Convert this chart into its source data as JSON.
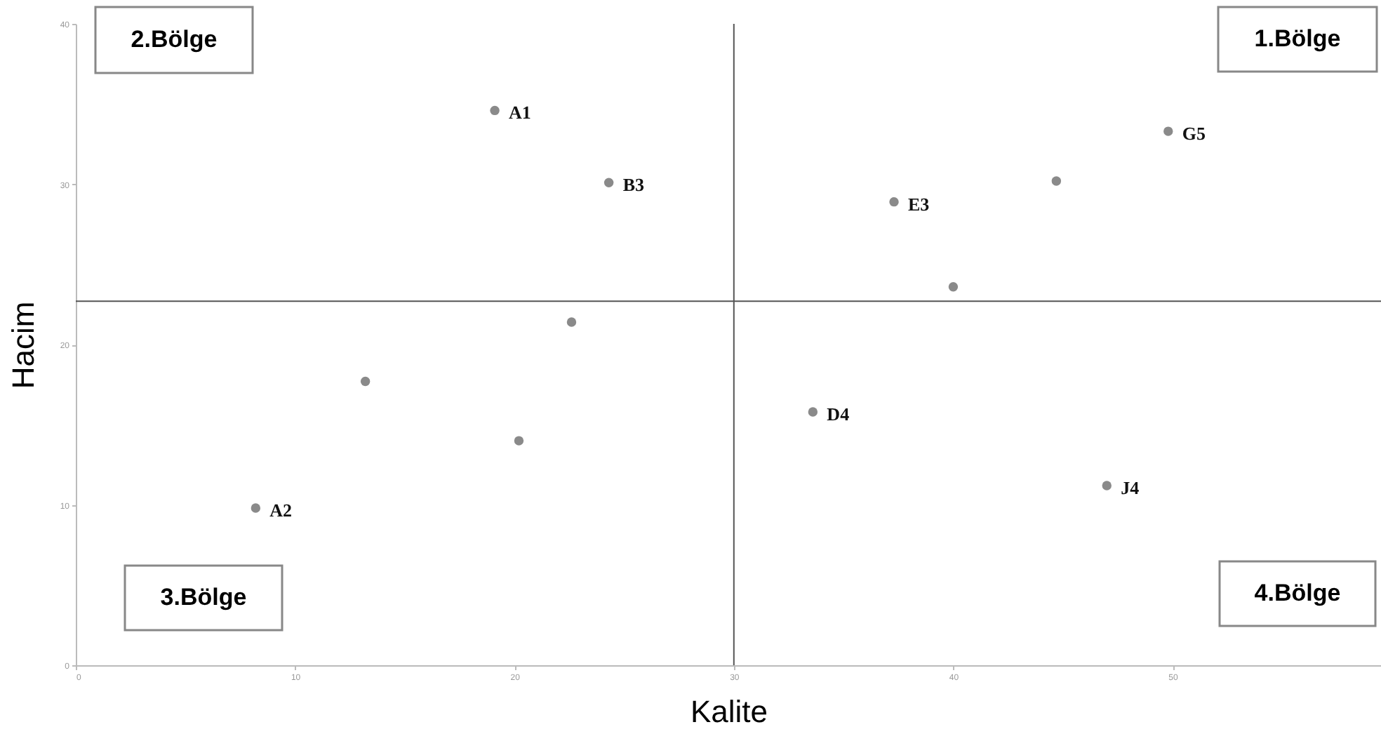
{
  "chart_data": {
    "type": "scatter",
    "xlabel": "Kalite",
    "ylabel": "Hacim",
    "xlim": [
      0,
      59.5
    ],
    "xticks": [
      0,
      10,
      20,
      30,
      40,
      50
    ],
    "ylim": [
      0,
      40
    ],
    "yticks": [
      0,
      10,
      20,
      30,
      40
    ],
    "grid": false,
    "marker": "circle",
    "series": [
      {
        "color": "#8a8a8a",
        "x": [
          19.1,
          24.3,
          22.6,
          13.2,
          20.2,
          8.2,
          37.3,
          40.0,
          44.7,
          49.8,
          33.6,
          47.0
        ],
        "values": [
          34.6,
          30.1,
          21.4,
          17.7,
          14.0,
          9.8,
          28.9,
          23.6,
          30.2,
          33.3,
          15.8,
          11.2
        ],
        "value_labels": [
          "A1",
          "B3",
          null,
          null,
          null,
          "A2",
          "E3",
          null,
          null,
          "G5",
          "D4",
          "J4"
        ]
      }
    ],
    "ref_lines": [
      {
        "axis": "x",
        "value": 30,
        "color": "#555555"
      },
      {
        "axis": "y",
        "value": 22.7,
        "color": "#555555"
      }
    ],
    "annotations": [
      "2.Bölge",
      "1.Bölge",
      "3.Bölge",
      "4.Bölge"
    ]
  }
}
